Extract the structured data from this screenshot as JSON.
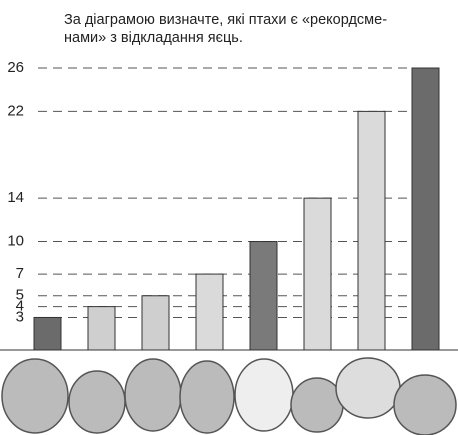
{
  "chart_data": {
    "type": "bar",
    "title": [
      "За діаграмою визначте, які птахи є «рекордсме-",
      "нами» з відкладання яєць."
    ],
    "categories": [
      null,
      null,
      null,
      null,
      null,
      null,
      null,
      null
    ],
    "values": [
      3,
      4,
      5,
      7,
      10,
      14,
      22,
      26
    ],
    "colors": [
      "#6b6b6b",
      "#cfcfcf",
      "#cfcfcf",
      "#dadada",
      "#7a7a7a",
      "#dadada",
      "#dadada",
      "#6b6b6b"
    ],
    "ylim": [
      0,
      26
    ],
    "yticks": [
      3,
      4,
      5,
      7,
      10,
      14,
      22,
      26
    ],
    "grid": true
  }
}
